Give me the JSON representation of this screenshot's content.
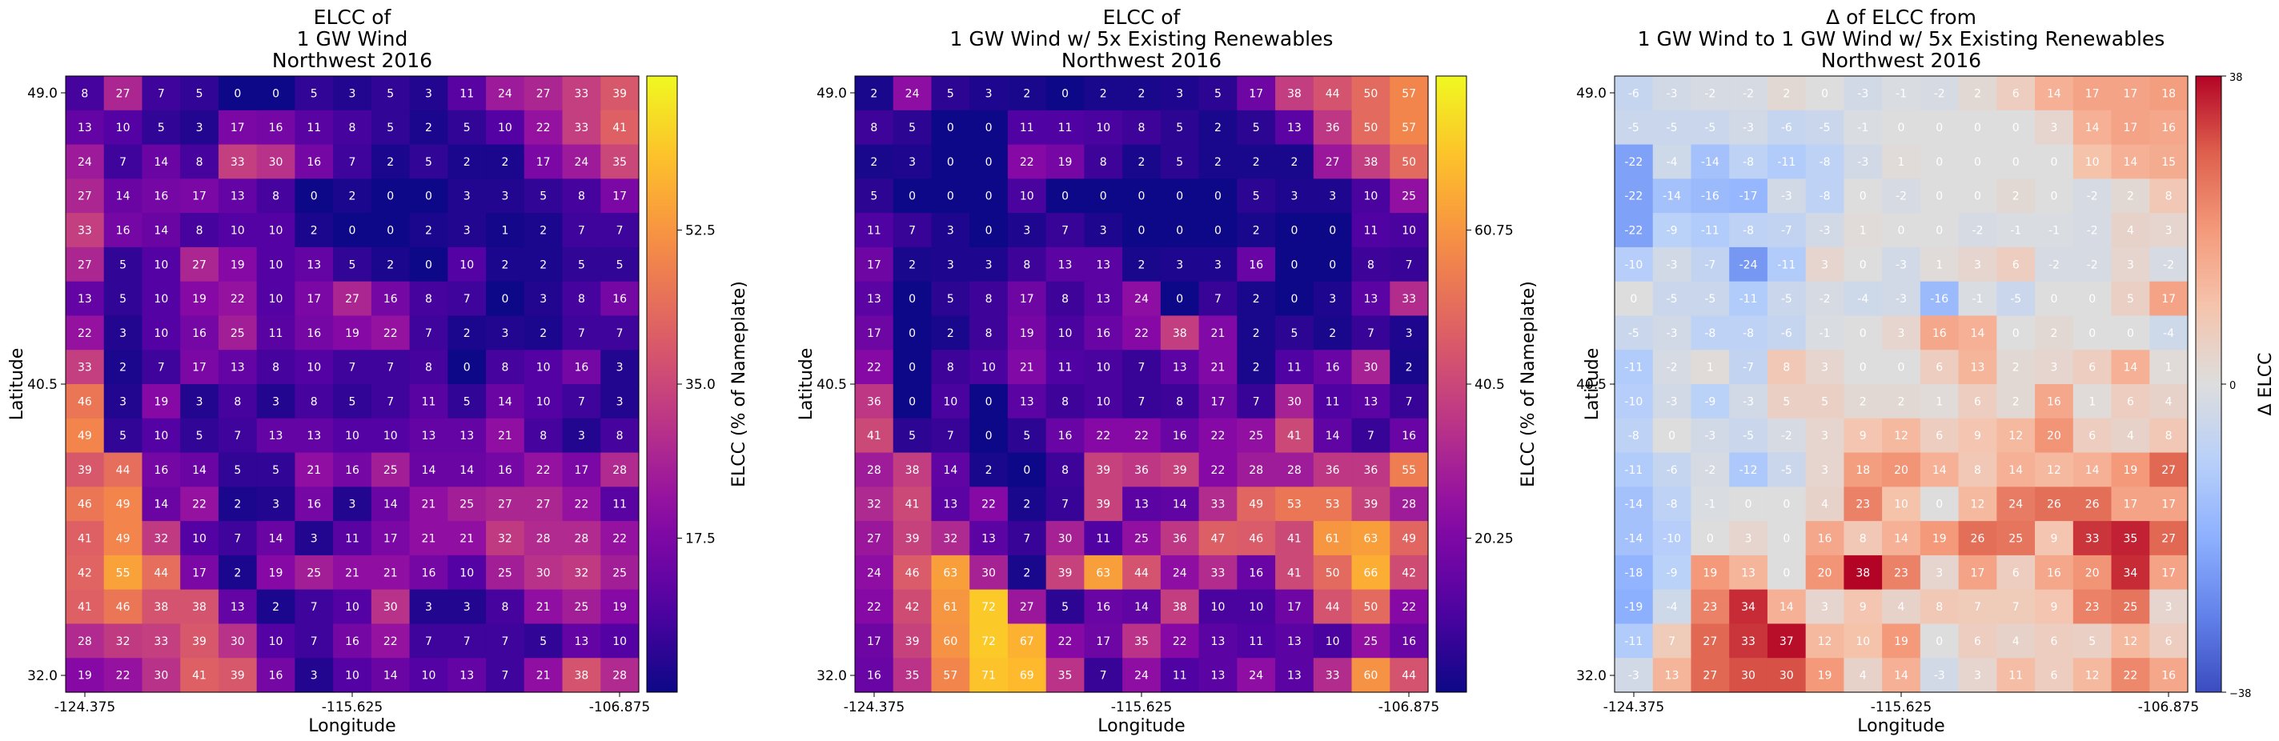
{
  "chart_data": [
    {
      "type": "heatmap",
      "title_lines": [
        "ELCC of",
        "1 GW Wind",
        "Northwest 2016"
      ],
      "xlabel": "Longitude",
      "ylabel": "Latitude",
      "x_ticks": [
        "-124.375",
        "-115.625",
        "-106.875"
      ],
      "y_ticks": [
        "49.0",
        "40.5",
        "32.0"
      ],
      "colorbar_label": "ELCC (% of Nameplate)",
      "colorbar_ticks": [
        "17.5",
        "35.0",
        "52.5"
      ],
      "colormap": "plasma",
      "vmin": 0,
      "vmax": 70,
      "colorbar_tick_values": [
        17.5,
        35.0,
        52.5
      ],
      "values": [
        [
          8,
          27,
          7,
          5,
          0,
          0,
          5,
          3,
          5,
          3,
          11,
          24,
          27,
          33,
          39
        ],
        [
          13,
          10,
          5,
          3,
          17,
          16,
          11,
          8,
          5,
          2,
          5,
          10,
          22,
          33,
          41
        ],
        [
          24,
          7,
          14,
          8,
          33,
          30,
          16,
          7,
          2,
          5,
          2,
          2,
          17,
          24,
          35
        ],
        [
          27,
          14,
          16,
          17,
          13,
          8,
          0,
          2,
          0,
          0,
          3,
          3,
          5,
          8,
          17
        ],
        [
          33,
          16,
          14,
          8,
          10,
          10,
          2,
          0,
          0,
          2,
          3,
          1,
          2,
          7,
          7
        ],
        [
          27,
          5,
          10,
          27,
          19,
          10,
          13,
          5,
          2,
          0,
          10,
          2,
          2,
          5,
          5
        ],
        [
          13,
          5,
          10,
          19,
          22,
          10,
          17,
          27,
          16,
          8,
          7,
          0,
          3,
          8,
          16
        ],
        [
          22,
          3,
          10,
          16,
          25,
          11,
          16,
          19,
          22,
          7,
          2,
          3,
          2,
          7,
          7
        ],
        [
          33,
          2,
          7,
          17,
          13,
          8,
          10,
          7,
          7,
          8,
          0,
          8,
          10,
          16,
          3
        ],
        [
          46,
          3,
          19,
          3,
          8,
          3,
          8,
          5,
          7,
          11,
          5,
          14,
          10,
          7,
          3
        ],
        [
          49,
          5,
          10,
          5,
          7,
          13,
          13,
          10,
          10,
          13,
          13,
          21,
          8,
          3,
          8
        ],
        [
          39,
          44,
          16,
          14,
          5,
          5,
          21,
          16,
          25,
          14,
          14,
          16,
          22,
          17,
          28
        ],
        [
          46,
          49,
          14,
          22,
          2,
          3,
          16,
          3,
          14,
          21,
          25,
          27,
          27,
          22,
          11
        ],
        [
          41,
          49,
          32,
          10,
          7,
          14,
          3,
          11,
          17,
          21,
          21,
          32,
          28,
          28,
          22
        ],
        [
          42,
          55,
          44,
          17,
          2,
          19,
          25,
          21,
          21,
          16,
          10,
          25,
          30,
          32,
          25
        ],
        [
          41,
          46,
          38,
          38,
          13,
          2,
          7,
          10,
          30,
          3,
          3,
          8,
          21,
          25,
          19
        ],
        [
          28,
          32,
          33,
          39,
          30,
          10,
          7,
          16,
          22,
          7,
          7,
          7,
          5,
          13,
          10
        ],
        [
          19,
          22,
          30,
          41,
          39,
          16,
          3,
          10,
          14,
          10,
          13,
          7,
          21,
          38,
          28
        ]
      ]
    },
    {
      "type": "heatmap",
      "title_lines": [
        "ELCC of",
        "1 GW Wind w/ 5x Existing Renewables",
        "Northwest 2016"
      ],
      "xlabel": "Longitude",
      "ylabel": "Latitude",
      "x_ticks": [
        "-124.375",
        "-115.625",
        "-106.875"
      ],
      "y_ticks": [
        "49.0",
        "40.5",
        "32.0"
      ],
      "colorbar_label": "ELCC (% of Nameplate)",
      "colorbar_ticks": [
        "20.25",
        "40.5",
        "60.75"
      ],
      "colormap": "plasma",
      "vmin": 0,
      "vmax": 81,
      "colorbar_tick_values": [
        20.25,
        40.5,
        60.75
      ],
      "values": [
        [
          2,
          24,
          5,
          3,
          2,
          0,
          2,
          2,
          3,
          5,
          17,
          38,
          44,
          50,
          57
        ],
        [
          8,
          5,
          0,
          0,
          11,
          11,
          10,
          8,
          5,
          2,
          5,
          13,
          36,
          50,
          57
        ],
        [
          2,
          3,
          0,
          0,
          22,
          19,
          8,
          2,
          5,
          2,
          2,
          2,
          27,
          38,
          50
        ],
        [
          5,
          0,
          0,
          0,
          10,
          0,
          0,
          0,
          0,
          0,
          5,
          3,
          3,
          10,
          25
        ],
        [
          11,
          7,
          3,
          0,
          3,
          7,
          3,
          0,
          0,
          0,
          2,
          0,
          0,
          11,
          10
        ],
        [
          17,
          2,
          3,
          3,
          8,
          13,
          13,
          2,
          3,
          3,
          16,
          0,
          0,
          8,
          7
        ],
        [
          13,
          0,
          5,
          8,
          17,
          8,
          13,
          24,
          0,
          7,
          2,
          0,
          3,
          13,
          33
        ],
        [
          17,
          0,
          2,
          8,
          19,
          10,
          16,
          22,
          38,
          21,
          2,
          5,
          2,
          7,
          3
        ],
        [
          22,
          0,
          8,
          10,
          21,
          11,
          10,
          7,
          13,
          21,
          2,
          11,
          16,
          30,
          2
        ],
        [
          36,
          0,
          10,
          0,
          13,
          8,
          10,
          7,
          8,
          17,
          7,
          30,
          11,
          13,
          7
        ],
        [
          41,
          5,
          7,
          0,
          5,
          16,
          22,
          22,
          16,
          22,
          25,
          41,
          14,
          7,
          16
        ],
        [
          28,
          38,
          14,
          2,
          0,
          8,
          39,
          36,
          39,
          22,
          28,
          28,
          36,
          36,
          55
        ],
        [
          32,
          41,
          13,
          22,
          2,
          7,
          39,
          13,
          14,
          33,
          49,
          53,
          53,
          39,
          28
        ],
        [
          27,
          39,
          32,
          13,
          7,
          30,
          11,
          25,
          36,
          47,
          46,
          41,
          61,
          63,
          49
        ],
        [
          24,
          46,
          63,
          30,
          2,
          39,
          63,
          44,
          24,
          33,
          16,
          41,
          50,
          66,
          42
        ],
        [
          22,
          42,
          61,
          72,
          27,
          5,
          16,
          14,
          38,
          10,
          10,
          17,
          44,
          50,
          22
        ],
        [
          17,
          39,
          60,
          72,
          67,
          22,
          17,
          35,
          22,
          13,
          11,
          13,
          10,
          25,
          16
        ],
        [
          16,
          35,
          57,
          71,
          69,
          35,
          7,
          24,
          11,
          13,
          24,
          13,
          33,
          60,
          44
        ]
      ]
    },
    {
      "type": "heatmap",
      "title_lines": [
        "Δ of ELCC from",
        "1 GW Wind to 1 GW Wind w/ 5x Existing Renewables",
        "Northwest 2016"
      ],
      "xlabel": "Longitude",
      "ylabel": "Latitude",
      "x_ticks": [
        "-124.375",
        "-115.625",
        "-106.875"
      ],
      "y_ticks": [
        "49.0",
        "40.5",
        "32.0"
      ],
      "colorbar_label": "Δ ELCC",
      "colorbar_ticks": [
        "38",
        "0",
        "−38"
      ],
      "colormap": "coolwarm",
      "vmin": -38,
      "vmax": 38,
      "colorbar_tick_values": [
        38,
        0,
        -38
      ],
      "values": [
        [
          -6,
          -3,
          -2,
          -2,
          2,
          0,
          -3,
          -1,
          -2,
          2,
          6,
          14,
          17,
          17,
          18
        ],
        [
          -5,
          -5,
          -5,
          -3,
          -6,
          -5,
          -1,
          0,
          0,
          0,
          0,
          3,
          14,
          17,
          16
        ],
        [
          -22,
          -4,
          -14,
          -8,
          -11,
          -8,
          -3,
          1,
          0,
          0,
          0,
          0,
          10,
          14,
          15
        ],
        [
          -22,
          -14,
          -16,
          -17,
          -3,
          -8,
          0,
          -2,
          0,
          0,
          2,
          0,
          -2,
          2,
          8
        ],
        [
          -22,
          -9,
          -11,
          -8,
          -7,
          -3,
          1,
          0,
          0,
          -2,
          -1,
          -1,
          -2,
          4,
          3
        ],
        [
          -10,
          -3,
          -7,
          -24,
          -11,
          3,
          0,
          -3,
          1,
          3,
          6,
          -2,
          -2,
          3,
          -2
        ],
        [
          0,
          -5,
          -5,
          -11,
          -5,
          -2,
          -4,
          -3,
          -16,
          -1,
          -5,
          0,
          0,
          5,
          17
        ],
        [
          -5,
          -3,
          -8,
          -8,
          -6,
          -1,
          0,
          3,
          16,
          14,
          0,
          2,
          0,
          0,
          -4
        ],
        [
          -11,
          -2,
          1,
          -7,
          8,
          3,
          0,
          0,
          6,
          13,
          2,
          3,
          6,
          14,
          1
        ],
        [
          -10,
          -3,
          -9,
          -3,
          5,
          5,
          2,
          2,
          1,
          6,
          2,
          16,
          1,
          6,
          4
        ],
        [
          -8,
          0,
          -3,
          -5,
          -2,
          3,
          9,
          12,
          6,
          9,
          12,
          20,
          6,
          4,
          8
        ],
        [
          -11,
          -6,
          -2,
          -12,
          -5,
          3,
          18,
          20,
          14,
          8,
          14,
          12,
          14,
          19,
          27
        ],
        [
          -14,
          -8,
          -1,
          0,
          0,
          4,
          23,
          10,
          0,
          12,
          24,
          26,
          26,
          17,
          17
        ],
        [
          -14,
          -10,
          0,
          3,
          0,
          16,
          8,
          14,
          19,
          26,
          25,
          9,
          33,
          35,
          27
        ],
        [
          -18,
          -9,
          19,
          13,
          0,
          20,
          38,
          23,
          3,
          17,
          6,
          16,
          20,
          34,
          17
        ],
        [
          -19,
          -4,
          23,
          34,
          14,
          3,
          9,
          4,
          8,
          7,
          7,
          9,
          23,
          25,
          3
        ],
        [
          -11,
          7,
          27,
          33,
          37,
          12,
          10,
          19,
          0,
          6,
          4,
          6,
          5,
          12,
          6
        ],
        [
          -3,
          13,
          27,
          30,
          30,
          19,
          4,
          14,
          -3,
          3,
          11,
          6,
          12,
          22,
          16
        ]
      ]
    }
  ]
}
